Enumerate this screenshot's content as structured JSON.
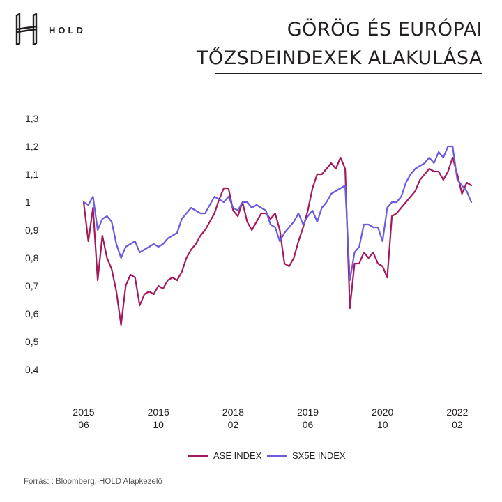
{
  "brand": {
    "logo_text": "HOLD"
  },
  "header": {
    "title_line1": "GÖRÖG ÉS EURÓPAI",
    "title_line2": "TŐZSDEINDEXEK ALAKULÁSA"
  },
  "source": "Forrás: : Bloomberg, HOLD Alapkezelő",
  "colors": {
    "ase": "#a3195b",
    "sx5e": "#6a5be0",
    "text": "#231f20"
  },
  "chart_data": {
    "type": "line",
    "title": "GÖRÖG ÉS EURÓPAI TŐZSDEINDEXEK ALAKULÁSA",
    "xlabel": "",
    "ylabel": "",
    "ylim": [
      0.4,
      1.3
    ],
    "xlim": [
      "2015-06",
      "2022-05"
    ],
    "grid": false,
    "legend": "bottom-center",
    "y_ticks": [
      "1,3",
      "1,2",
      "1,1",
      "1",
      "0,9",
      "0,8",
      "0,7",
      "0,6",
      "0,5",
      "0,4"
    ],
    "x_ticks": [
      {
        "date": "2015-06",
        "line1": "2015",
        "line2": "06"
      },
      {
        "date": "2016-10",
        "line1": "2016",
        "line2": "10"
      },
      {
        "date": "2018-02",
        "line1": "2018",
        "line2": "02"
      },
      {
        "date": "2019-06",
        "line1": "2019",
        "line2": "06"
      },
      {
        "date": "2020-10",
        "line1": "2020",
        "line2": "10"
      },
      {
        "date": "2022-02",
        "line1": "2022",
        "line2": "02"
      }
    ],
    "series": [
      {
        "name": "ASE INDEX",
        "color": "#a3195b",
        "points": [
          [
            "2015-06",
            1.0
          ],
          [
            "2015-07",
            0.86
          ],
          [
            "2015-08",
            0.98
          ],
          [
            "2015-09",
            0.72
          ],
          [
            "2015-10",
            0.88
          ],
          [
            "2015-11",
            0.8
          ],
          [
            "2015-12",
            0.76
          ],
          [
            "2016-01",
            0.68
          ],
          [
            "2016-02",
            0.56
          ],
          [
            "2016-03",
            0.7
          ],
          [
            "2016-04",
            0.74
          ],
          [
            "2016-05",
            0.73
          ],
          [
            "2016-06",
            0.63
          ],
          [
            "2016-07",
            0.67
          ],
          [
            "2016-08",
            0.68
          ],
          [
            "2016-09",
            0.67
          ],
          [
            "2016-10",
            0.7
          ],
          [
            "2016-11",
            0.69
          ],
          [
            "2016-12",
            0.72
          ],
          [
            "2017-01",
            0.73
          ],
          [
            "2017-02",
            0.72
          ],
          [
            "2017-03",
            0.75
          ],
          [
            "2017-04",
            0.8
          ],
          [
            "2017-05",
            0.83
          ],
          [
            "2017-06",
            0.85
          ],
          [
            "2017-07",
            0.88
          ],
          [
            "2017-08",
            0.9
          ],
          [
            "2017-09",
            0.93
          ],
          [
            "2017-10",
            0.96
          ],
          [
            "2017-11",
            1.01
          ],
          [
            "2017-12",
            1.05
          ],
          [
            "2018-01",
            1.05
          ],
          [
            "2018-02",
            0.97
          ],
          [
            "2018-03",
            0.95
          ],
          [
            "2018-04",
            1.0
          ],
          [
            "2018-05",
            0.93
          ],
          [
            "2018-06",
            0.9
          ],
          [
            "2018-07",
            0.93
          ],
          [
            "2018-08",
            0.96
          ],
          [
            "2018-09",
            0.96
          ],
          [
            "2018-10",
            0.94
          ],
          [
            "2018-11",
            0.96
          ],
          [
            "2018-12",
            0.9
          ],
          [
            "2019-01",
            0.78
          ],
          [
            "2019-02",
            0.77
          ],
          [
            "2019-03",
            0.8
          ],
          [
            "2019-04",
            0.86
          ],
          [
            "2019-05",
            0.91
          ],
          [
            "2019-06",
            0.97
          ],
          [
            "2019-07",
            1.05
          ],
          [
            "2019-08",
            1.1
          ],
          [
            "2019-09",
            1.1
          ],
          [
            "2019-10",
            1.12
          ],
          [
            "2019-11",
            1.14
          ],
          [
            "2019-12",
            1.12
          ],
          [
            "2020-01",
            1.16
          ],
          [
            "2020-02",
            1.12
          ],
          [
            "2020-03",
            0.62
          ],
          [
            "2020-04",
            0.78
          ],
          [
            "2020-05",
            0.78
          ],
          [
            "2020-06",
            0.82
          ],
          [
            "2020-07",
            0.8
          ],
          [
            "2020-08",
            0.82
          ],
          [
            "2020-09",
            0.78
          ],
          [
            "2020-10",
            0.77
          ],
          [
            "2020-11",
            0.73
          ],
          [
            "2020-12",
            0.95
          ],
          [
            "2021-01",
            0.96
          ],
          [
            "2021-02",
            0.98
          ],
          [
            "2021-03",
            1.0
          ],
          [
            "2021-04",
            1.02
          ],
          [
            "2021-05",
            1.04
          ],
          [
            "2021-06",
            1.08
          ],
          [
            "2021-07",
            1.1
          ],
          [
            "2021-08",
            1.12
          ],
          [
            "2021-09",
            1.11
          ],
          [
            "2021-10",
            1.11
          ],
          [
            "2021-11",
            1.08
          ],
          [
            "2021-12",
            1.11
          ],
          [
            "2022-01",
            1.16
          ],
          [
            "2022-02",
            1.1
          ],
          [
            "2022-03",
            1.03
          ],
          [
            "2022-04",
            1.07
          ],
          [
            "2022-05",
            1.06
          ]
        ]
      },
      {
        "name": "SX5E INDEX",
        "color": "#6a5be0",
        "points": [
          [
            "2015-06",
            1.0
          ],
          [
            "2015-07",
            0.99
          ],
          [
            "2015-08",
            1.02
          ],
          [
            "2015-09",
            0.9
          ],
          [
            "2015-10",
            0.94
          ],
          [
            "2015-11",
            0.95
          ],
          [
            "2015-12",
            0.93
          ],
          [
            "2016-01",
            0.85
          ],
          [
            "2016-02",
            0.8
          ],
          [
            "2016-03",
            0.84
          ],
          [
            "2016-04",
            0.85
          ],
          [
            "2016-05",
            0.86
          ],
          [
            "2016-06",
            0.82
          ],
          [
            "2016-07",
            0.83
          ],
          [
            "2016-08",
            0.84
          ],
          [
            "2016-09",
            0.85
          ],
          [
            "2016-10",
            0.84
          ],
          [
            "2016-11",
            0.85
          ],
          [
            "2016-12",
            0.87
          ],
          [
            "2017-01",
            0.88
          ],
          [
            "2017-02",
            0.89
          ],
          [
            "2017-03",
            0.94
          ],
          [
            "2017-04",
            0.96
          ],
          [
            "2017-05",
            0.98
          ],
          [
            "2017-06",
            0.97
          ],
          [
            "2017-07",
            0.96
          ],
          [
            "2017-08",
            0.96
          ],
          [
            "2017-09",
            0.99
          ],
          [
            "2017-10",
            1.02
          ],
          [
            "2017-11",
            1.01
          ],
          [
            "2017-12",
            1.0
          ],
          [
            "2018-01",
            1.02
          ],
          [
            "2018-02",
            0.98
          ],
          [
            "2018-03",
            0.97
          ],
          [
            "2018-04",
            1.0
          ],
          [
            "2018-05",
            1.0
          ],
          [
            "2018-06",
            0.98
          ],
          [
            "2018-07",
            0.99
          ],
          [
            "2018-08",
            0.98
          ],
          [
            "2018-09",
            0.97
          ],
          [
            "2018-10",
            0.92
          ],
          [
            "2018-11",
            0.91
          ],
          [
            "2018-12",
            0.86
          ],
          [
            "2019-01",
            0.89
          ],
          [
            "2019-02",
            0.91
          ],
          [
            "2019-03",
            0.93
          ],
          [
            "2019-04",
            0.96
          ],
          [
            "2019-05",
            0.92
          ],
          [
            "2019-06",
            0.95
          ],
          [
            "2019-07",
            0.97
          ],
          [
            "2019-08",
            0.93
          ],
          [
            "2019-09",
            0.98
          ],
          [
            "2019-10",
            1.0
          ],
          [
            "2019-11",
            1.03
          ],
          [
            "2019-12",
            1.04
          ],
          [
            "2020-01",
            1.05
          ],
          [
            "2020-02",
            1.06
          ],
          [
            "2020-03",
            0.72
          ],
          [
            "2020-04",
            0.82
          ],
          [
            "2020-05",
            0.84
          ],
          [
            "2020-06",
            0.92
          ],
          [
            "2020-07",
            0.92
          ],
          [
            "2020-08",
            0.91
          ],
          [
            "2020-09",
            0.91
          ],
          [
            "2020-10",
            0.86
          ],
          [
            "2020-11",
            0.98
          ],
          [
            "2020-12",
            1.0
          ],
          [
            "2021-01",
            1.0
          ],
          [
            "2021-02",
            1.02
          ],
          [
            "2021-03",
            1.07
          ],
          [
            "2021-04",
            1.1
          ],
          [
            "2021-05",
            1.12
          ],
          [
            "2021-06",
            1.13
          ],
          [
            "2021-07",
            1.14
          ],
          [
            "2021-08",
            1.16
          ],
          [
            "2021-09",
            1.14
          ],
          [
            "2021-10",
            1.18
          ],
          [
            "2021-11",
            1.16
          ],
          [
            "2021-12",
            1.2
          ],
          [
            "2022-01",
            1.2
          ],
          [
            "2022-02",
            1.08
          ],
          [
            "2022-03",
            1.06
          ],
          [
            "2022-04",
            1.04
          ],
          [
            "2022-05",
            1.0
          ]
        ]
      }
    ]
  }
}
